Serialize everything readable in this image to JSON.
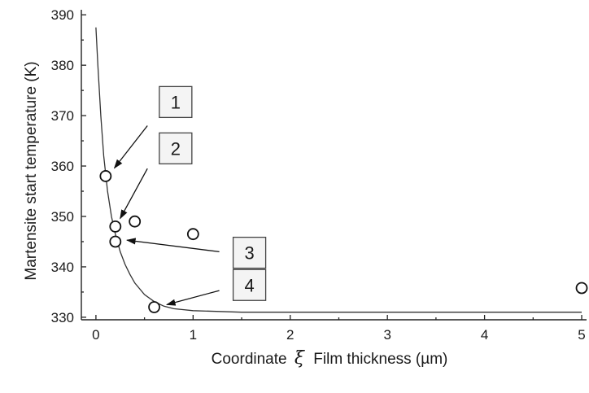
{
  "chart_data": {
    "type": "scatter",
    "xlabel_prefix": "Coordinate",
    "xlabel_symbol": "ξ",
    "xlabel_suffix": "Film thickness (µm)",
    "ylabel": "Martensite start temperature (K)",
    "xlim": [
      -0.15,
      5.05
    ],
    "ylim": [
      329.5,
      391
    ],
    "x_ticks": [
      0,
      1,
      2,
      3,
      4,
      5
    ],
    "y_ticks": [
      330,
      340,
      350,
      360,
      370,
      380,
      390
    ],
    "series": [
      {
        "kind": "points",
        "marker": "open-circle",
        "points": [
          {
            "x": 0.1,
            "y": 358
          },
          {
            "x": 0.2,
            "y": 348
          },
          {
            "x": 0.2,
            "y": 345
          },
          {
            "x": 0.4,
            "y": 349
          },
          {
            "x": 1.0,
            "y": 346.5
          },
          {
            "x": 0.6,
            "y": 332
          },
          {
            "x": 5.0,
            "y": 335.8
          }
        ]
      },
      {
        "kind": "fit-curve",
        "points": [
          {
            "x": 0.0,
            "y": 387.5
          },
          {
            "x": 0.02,
            "y": 380
          },
          {
            "x": 0.05,
            "y": 370
          },
          {
            "x": 0.08,
            "y": 362
          },
          {
            "x": 0.12,
            "y": 355
          },
          {
            "x": 0.16,
            "y": 350
          },
          {
            "x": 0.2,
            "y": 346.5
          },
          {
            "x": 0.25,
            "y": 343
          },
          {
            "x": 0.3,
            "y": 340.5
          },
          {
            "x": 0.35,
            "y": 338.5
          },
          {
            "x": 0.4,
            "y": 336.8
          },
          {
            "x": 0.5,
            "y": 334.5
          },
          {
            "x": 0.6,
            "y": 333.1
          },
          {
            "x": 0.7,
            "y": 332.2
          },
          {
            "x": 0.8,
            "y": 331.7
          },
          {
            "x": 1.0,
            "y": 331.3
          },
          {
            "x": 1.5,
            "y": 331.0
          },
          {
            "x": 2.0,
            "y": 331.0
          },
          {
            "x": 3.0,
            "y": 331.0
          },
          {
            "x": 4.0,
            "y": 331.0
          },
          {
            "x": 5.0,
            "y": 331.0
          }
        ]
      }
    ],
    "annotations": [
      {
        "label": "1",
        "box": {
          "x": 0.82,
          "y": 372.7
        },
        "from": {
          "x": 0.53,
          "y": 368.0
        },
        "to": {
          "x": 0.19,
          "y": 359.6
        }
      },
      {
        "label": "2",
        "box": {
          "x": 0.82,
          "y": 363.5
        },
        "from": {
          "x": 0.53,
          "y": 359.5
        },
        "to": {
          "x": 0.25,
          "y": 349.6
        }
      },
      {
        "label": "3",
        "box": {
          "x": 1.58,
          "y": 342.8
        },
        "from": {
          "x": 1.27,
          "y": 343.0
        },
        "to": {
          "x": 0.32,
          "y": 345.3
        }
      },
      {
        "label": "4",
        "box": {
          "x": 1.58,
          "y": 336.4
        },
        "from": {
          "x": 1.27,
          "y": 335.3
        },
        "to": {
          "x": 0.73,
          "y": 332.5
        }
      }
    ],
    "grid": false
  }
}
